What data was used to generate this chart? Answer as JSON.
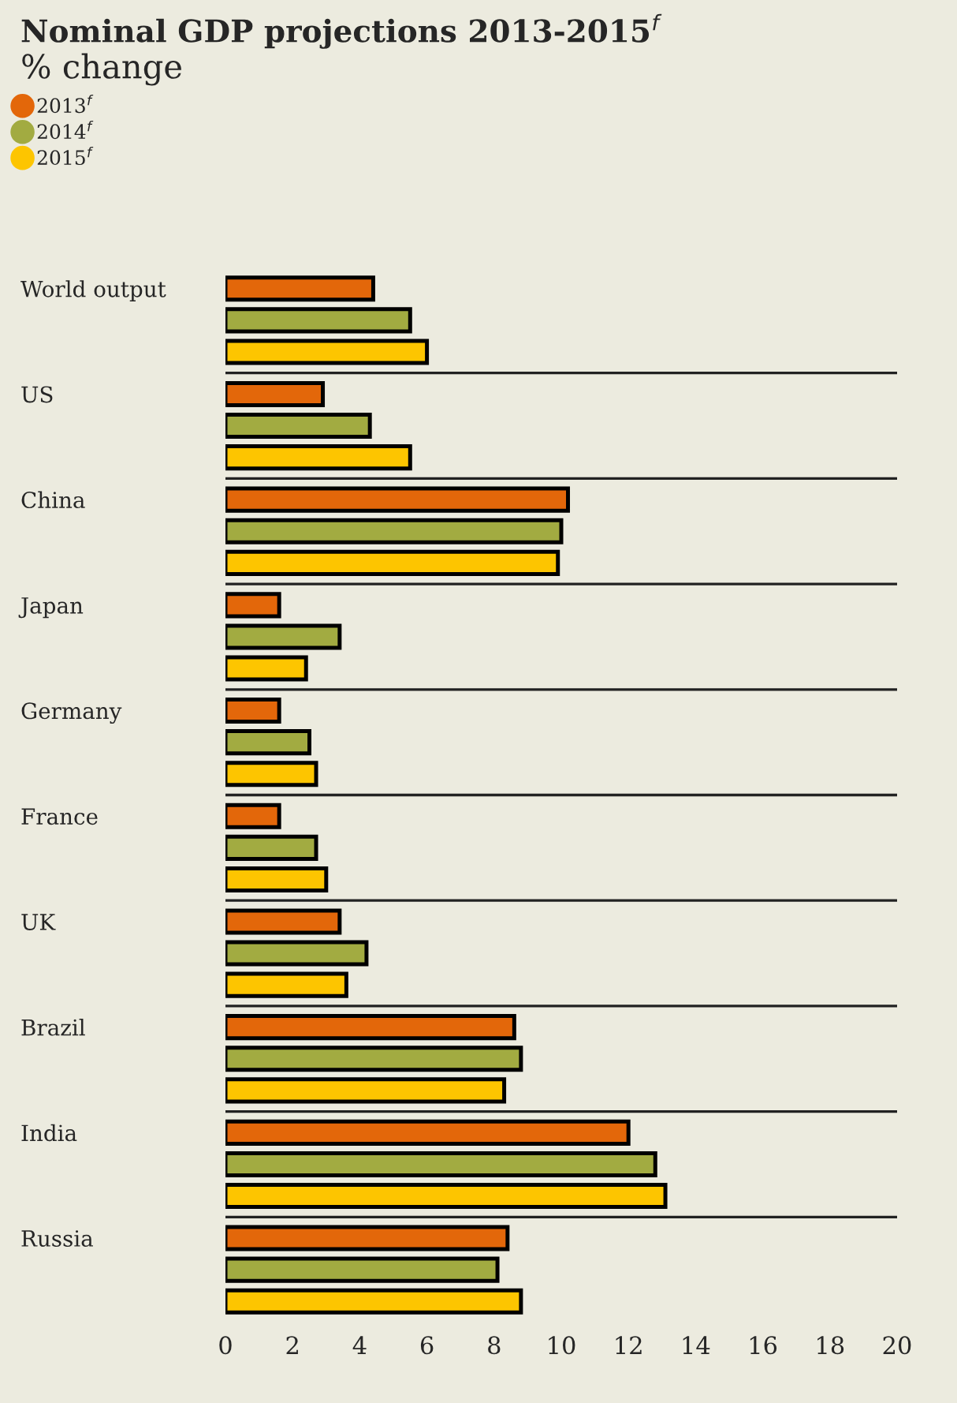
{
  "chart_data": {
    "type": "bar",
    "orientation": "horizontal",
    "title": "Nominal GDP projections 2013-2015$^{f}$",
    "subtitle": "% change",
    "categories": [
      "World output",
      "US",
      "China",
      "Japan",
      "Germany",
      "France",
      "UK",
      "Brazil",
      "India",
      "Russia"
    ],
    "series": [
      {
        "name": "2013$^{f}$",
        "color": "#e3670a",
        "values": [
          4.4,
          2.9,
          10.2,
          1.6,
          1.6,
          1.6,
          3.4,
          8.6,
          12.0,
          8.4
        ]
      },
      {
        "name": "2014$^{f}$",
        "color": "#a2ab41",
        "values": [
          5.5,
          4.3,
          10.0,
          3.4,
          2.5,
          2.7,
          4.2,
          8.8,
          12.8,
          8.1
        ]
      },
      {
        "name": "2015$^{f}$",
        "color": "#fdc500",
        "values": [
          6.0,
          5.5,
          9.9,
          2.4,
          2.7,
          3.0,
          3.6,
          8.3,
          13.1,
          8.8
        ]
      }
    ],
    "xlim": [
      0,
      20
    ],
    "xticks": [
      0,
      2,
      4,
      6,
      8,
      10,
      12,
      14,
      16,
      18,
      20
    ],
    "grid": "y",
    "legend": "top left"
  }
}
